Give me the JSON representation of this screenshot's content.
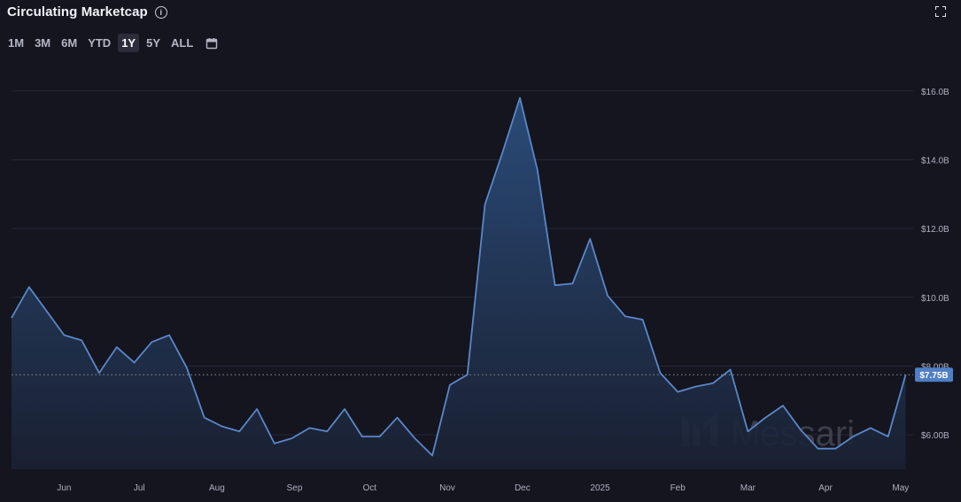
{
  "header": {
    "title": "Circulating Marketcap",
    "info_icon": "info-icon",
    "fullscreen_icon": "fullscreen-icon"
  },
  "range_selector": {
    "options": [
      "1M",
      "3M",
      "6M",
      "YTD",
      "1Y",
      "5Y",
      "ALL"
    ],
    "selected": "1Y",
    "calendar_icon": "calendar-icon"
  },
  "watermark": {
    "text": "Messari"
  },
  "colors": {
    "line": "#5b87c8",
    "fill_top": "#27466f",
    "fill_bottom": "#1a2233",
    "grid": "#262837",
    "badge": "#4f7fc4"
  },
  "chart_data": {
    "type": "area",
    "ylim": [
      5000000000,
      16200000000
    ],
    "y_ticks": [
      {
        "value": 6000000000,
        "label": "$6.00B"
      },
      {
        "value": 8000000000,
        "label": "$8.00B"
      },
      {
        "value": 10000000000,
        "label": "$10.0B"
      },
      {
        "value": 12000000000,
        "label": "$12.0B"
      },
      {
        "value": 14000000000,
        "label": "$14.0B"
      },
      {
        "value": 16000000000,
        "label": "$16.0B"
      }
    ],
    "x_range": [
      "2024-05-11",
      "2025-05-06"
    ],
    "x_ticks": [
      {
        "date": "2024-06-01",
        "label": "Jun"
      },
      {
        "date": "2024-07-01",
        "label": "Jul"
      },
      {
        "date": "2024-08-01",
        "label": "Aug"
      },
      {
        "date": "2024-09-01",
        "label": "Sep"
      },
      {
        "date": "2024-10-01",
        "label": "Oct"
      },
      {
        "date": "2024-11-01",
        "label": "Nov"
      },
      {
        "date": "2024-12-01",
        "label": "Dec"
      },
      {
        "date": "2025-01-01",
        "label": "2025"
      },
      {
        "date": "2025-02-01",
        "label": "Feb"
      },
      {
        "date": "2025-03-01",
        "label": "Mar"
      },
      {
        "date": "2025-04-01",
        "label": "Apr"
      },
      {
        "date": "2025-05-01",
        "label": "May"
      }
    ],
    "last_value": {
      "value": 7750000000,
      "label": "$7.75B"
    },
    "points": [
      [
        "2024-05-11",
        9.4
      ],
      [
        "2024-05-18",
        10.3
      ],
      [
        "2024-05-25",
        9.6
      ],
      [
        "2024-06-01",
        8.9
      ],
      [
        "2024-06-08",
        8.75
      ],
      [
        "2024-06-15",
        7.8
      ],
      [
        "2024-06-22",
        8.55
      ],
      [
        "2024-06-29",
        8.1
      ],
      [
        "2024-07-06",
        8.7
      ],
      [
        "2024-07-13",
        8.9
      ],
      [
        "2024-07-20",
        7.95
      ],
      [
        "2024-07-27",
        6.5
      ],
      [
        "2024-08-03",
        6.25
      ],
      [
        "2024-08-10",
        6.1
      ],
      [
        "2024-08-17",
        6.75
      ],
      [
        "2024-08-24",
        5.75
      ],
      [
        "2024-08-31",
        5.9
      ],
      [
        "2024-09-07",
        6.2
      ],
      [
        "2024-09-14",
        6.1
      ],
      [
        "2024-09-21",
        6.75
      ],
      [
        "2024-09-28",
        5.95
      ],
      [
        "2024-10-05",
        5.95
      ],
      [
        "2024-10-12",
        6.5
      ],
      [
        "2024-10-19",
        5.9
      ],
      [
        "2024-10-26",
        5.4
      ],
      [
        "2024-11-02",
        7.45
      ],
      [
        "2024-11-09",
        7.75
      ],
      [
        "2024-11-16",
        12.7
      ],
      [
        "2024-11-23",
        14.2
      ],
      [
        "2024-11-30",
        15.8
      ],
      [
        "2024-12-07",
        13.7
      ],
      [
        "2024-12-14",
        10.35
      ],
      [
        "2024-12-21",
        10.4
      ],
      [
        "2024-12-28",
        11.7
      ],
      [
        "2025-01-04",
        10.05
      ],
      [
        "2025-01-11",
        9.45
      ],
      [
        "2025-01-18",
        9.35
      ],
      [
        "2025-01-25",
        7.8
      ],
      [
        "2025-02-01",
        7.25
      ],
      [
        "2025-02-08",
        7.4
      ],
      [
        "2025-02-15",
        7.5
      ],
      [
        "2025-02-22",
        7.9
      ],
      [
        "2025-03-01",
        6.1
      ],
      [
        "2025-03-08",
        6.5
      ],
      [
        "2025-03-15",
        6.85
      ],
      [
        "2025-03-22",
        6.15
      ],
      [
        "2025-03-29",
        5.6
      ],
      [
        "2025-04-05",
        5.6
      ],
      [
        "2025-04-12",
        5.95
      ],
      [
        "2025-04-19",
        6.2
      ],
      [
        "2025-04-26",
        5.95
      ],
      [
        "2025-05-03",
        7.75
      ]
    ],
    "grid": true
  }
}
